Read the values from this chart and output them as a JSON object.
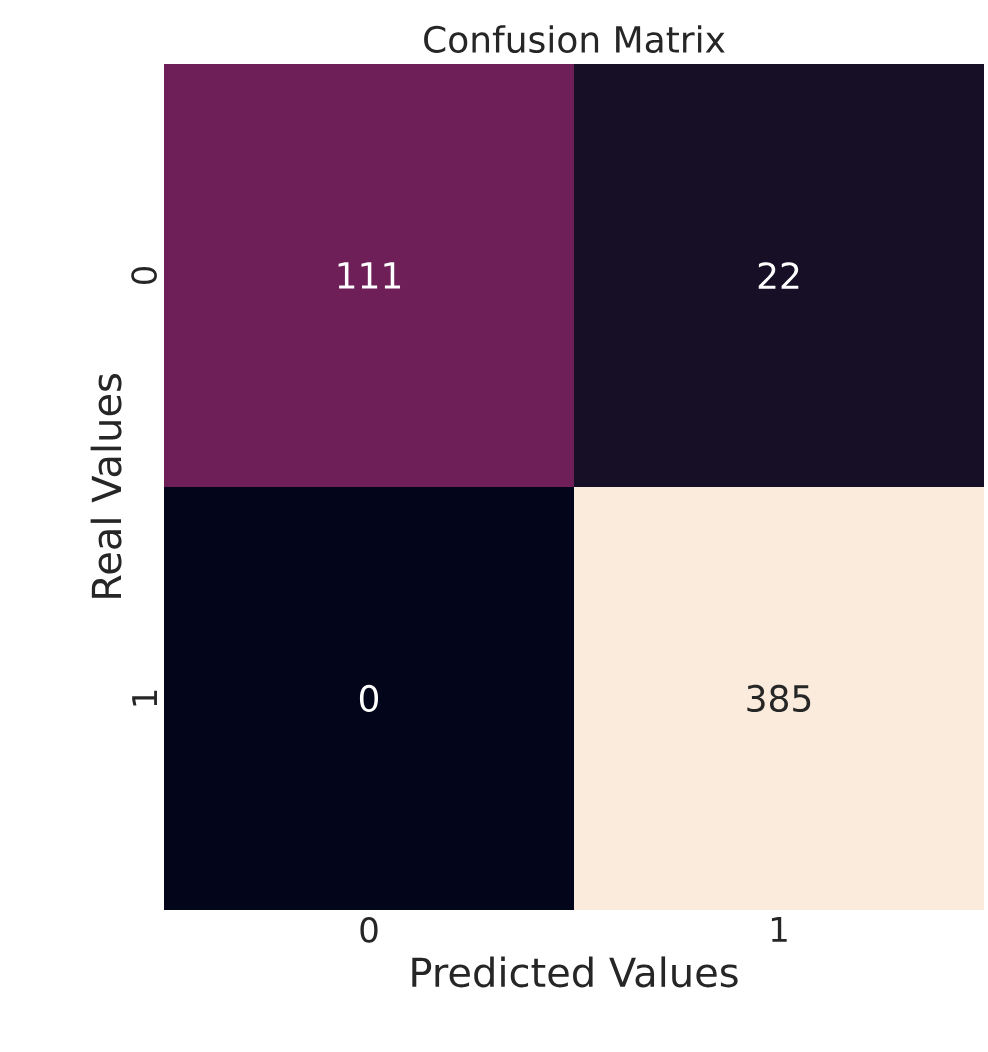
{
  "chart_data": {
    "type": "heatmap",
    "title": "Confusion Matrix",
    "xlabel": "Predicted Values",
    "ylabel": "Real Values",
    "categories": [
      "0",
      "1"
    ],
    "y_categories": [
      "0",
      "1"
    ],
    "data_labels": true,
    "cells": [
      [
        111,
        22
      ],
      [
        0,
        385
      ]
    ]
  }
}
